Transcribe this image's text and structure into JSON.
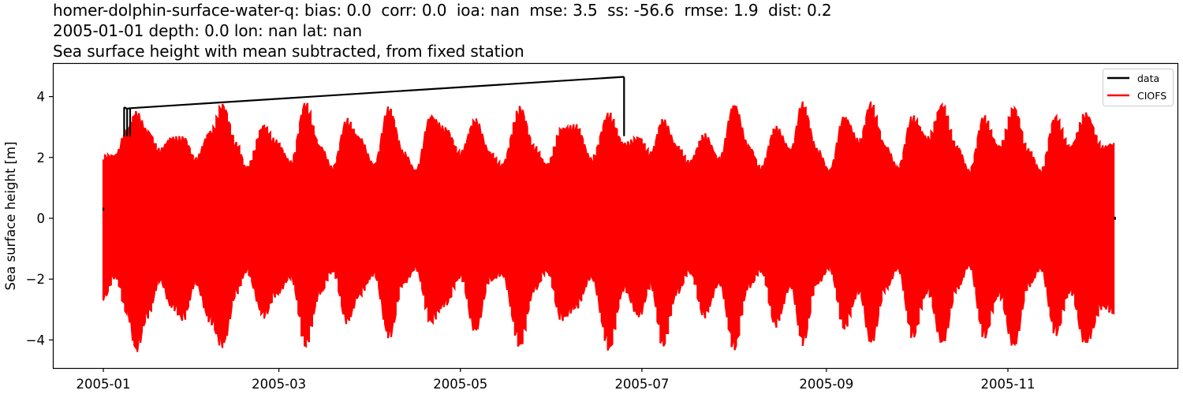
{
  "title": {
    "line1": "homer-dolphin-surface-water-q: bias: 0.0  corr: 0.0  ioa: nan  mse: 3.5  ss: -56.6  rmse: 1.9  dist: 0.2",
    "line2": "2005-01-01 depth: 0.0 lon: nan lat: nan",
    "line3": "Sea surface height with mean subtracted, from fixed station"
  },
  "axes": {
    "ylabel": "Sea surface height [m]",
    "yticks": [
      {
        "value": 4,
        "label": "4"
      },
      {
        "value": 2,
        "label": "2"
      },
      {
        "value": 0,
        "label": "0"
      },
      {
        "value": -2,
        "label": "−2"
      },
      {
        "value": -4,
        "label": "−4"
      }
    ],
    "xticks": [
      {
        "day": 0,
        "label": "2005-01"
      },
      {
        "day": 59,
        "label": "2005-03"
      },
      {
        "day": 120,
        "label": "2005-05"
      },
      {
        "day": 181,
        "label": "2005-07"
      },
      {
        "day": 243,
        "label": "2005-09"
      },
      {
        "day": 304,
        "label": "2005-11"
      }
    ]
  },
  "legend": {
    "items": [
      {
        "label": "data",
        "color": "#000000"
      },
      {
        "label": "CIOFS",
        "color": "#ff0000"
      }
    ]
  },
  "colors": {
    "data": "#000000",
    "model": "#ff0000",
    "axis": "#000000",
    "legend_border": "#cccccc"
  },
  "chart_data": {
    "type": "line",
    "title": "homer-dolphin-surface-water-q: bias: 0.0  corr: 0.0  ioa: nan  mse: 3.5  ss: -56.6  rmse: 1.9  dist: 0.2 | 2005-01-01 depth: 0.0 lon: nan lat: nan | Sea surface height with mean subtracted, from fixed station",
    "xlabel": "",
    "ylabel": "Sea surface height [m]",
    "xlim": [
      "2004-12-03",
      "2005-12-31"
    ],
    "ylim": [
      -4.9,
      5.1
    ],
    "x_range": [
      "2005-01-01",
      "2005-12-07"
    ],
    "legend_position": "upper right",
    "grid": false,
    "series": [
      {
        "name": "data",
        "color": "#000000",
        "note": "Observed series is mostly flat near 0 and hidden under CIOFS except for spikes",
        "points": [
          {
            "date": "2005-01-01",
            "value": 0.3
          },
          {
            "date": "2005-01-08",
            "value": 3.65
          },
          {
            "date": "2005-01-09",
            "value": 3.6
          },
          {
            "date": "2005-01-10",
            "value": 3.62
          },
          {
            "date": "2005-06-25",
            "value": 4.65
          },
          {
            "date": "2005-12-07",
            "value": 0.0
          }
        ]
      },
      {
        "name": "CIOFS",
        "color": "#ff0000",
        "note": "Semi-diurnal tidal signal; envelope given as daily max/min at spring-neap control points (day of year from 2005-01-01)",
        "envelope": [
          {
            "day": 0,
            "max": 2.1,
            "min": -2.7
          },
          {
            "day": 4,
            "max": 2.1,
            "min": -2.0
          },
          {
            "day": 8,
            "max": 3.0,
            "min": -3.2
          },
          {
            "day": 11,
            "max": 3.55,
            "min": -4.45
          },
          {
            "day": 15,
            "max": 2.9,
            "min": -3.3
          },
          {
            "day": 19,
            "max": 2.3,
            "min": -2.1
          },
          {
            "day": 23,
            "max": 2.7,
            "min": -3.0
          },
          {
            "day": 27,
            "max": 2.7,
            "min": -3.4
          },
          {
            "day": 31,
            "max": 2.0,
            "min": -2.2
          },
          {
            "day": 36,
            "max": 2.9,
            "min": -3.5
          },
          {
            "day": 40,
            "max": 3.8,
            "min": -4.3
          },
          {
            "day": 45,
            "max": 2.5,
            "min": -2.5
          },
          {
            "day": 48,
            "max": 1.7,
            "min": -1.8
          },
          {
            "day": 54,
            "max": 3.1,
            "min": -3.3
          },
          {
            "day": 58,
            "max": 2.6,
            "min": -2.6
          },
          {
            "day": 63,
            "max": 1.9,
            "min": -2.0
          },
          {
            "day": 68,
            "max": 3.85,
            "min": -4.3
          },
          {
            "day": 73,
            "max": 2.4,
            "min": -2.5
          },
          {
            "day": 77,
            "max": 1.7,
            "min": -1.8
          },
          {
            "day": 82,
            "max": 3.3,
            "min": -3.5
          },
          {
            "day": 86,
            "max": 2.7,
            "min": -2.6
          },
          {
            "day": 91,
            "max": 1.8,
            "min": -1.9
          },
          {
            "day": 96,
            "max": 3.7,
            "min": -4.0
          },
          {
            "day": 101,
            "max": 2.2,
            "min": -2.2
          },
          {
            "day": 105,
            "max": 1.6,
            "min": -1.7
          },
          {
            "day": 110,
            "max": 3.4,
            "min": -3.5
          },
          {
            "day": 115,
            "max": 3.0,
            "min": -2.9
          },
          {
            "day": 120,
            "max": 2.2,
            "min": -2.0
          },
          {
            "day": 125,
            "max": 3.3,
            "min": -3.8
          },
          {
            "day": 130,
            "max": 2.2,
            "min": -2.1
          },
          {
            "day": 134,
            "max": 1.8,
            "min": -1.9
          },
          {
            "day": 140,
            "max": 3.7,
            "min": -4.3
          },
          {
            "day": 145,
            "max": 2.4,
            "min": -2.4
          },
          {
            "day": 149,
            "max": 1.8,
            "min": -1.8
          },
          {
            "day": 154,
            "max": 3.0,
            "min": -3.4
          },
          {
            "day": 159,
            "max": 3.1,
            "min": -3.0
          },
          {
            "day": 164,
            "max": 2.0,
            "min": -2.0
          },
          {
            "day": 170,
            "max": 3.5,
            "min": -4.4
          },
          {
            "day": 175,
            "max": 2.5,
            "min": -2.4
          },
          {
            "day": 180,
            "max": 2.7,
            "min": -3.3
          },
          {
            "day": 184,
            "max": 2.2,
            "min": -2.3
          },
          {
            "day": 188,
            "max": 3.3,
            "min": -4.3
          },
          {
            "day": 193,
            "max": 2.4,
            "min": -2.5
          },
          {
            "day": 197,
            "max": 1.9,
            "min": -1.8
          },
          {
            "day": 202,
            "max": 2.8,
            "min": -3.3
          },
          {
            "day": 207,
            "max": 2.0,
            "min": -2.2
          },
          {
            "day": 212,
            "max": 3.8,
            "min": -4.4
          },
          {
            "day": 217,
            "max": 2.4,
            "min": -2.3
          },
          {
            "day": 221,
            "max": 1.7,
            "min": -1.8
          },
          {
            "day": 226,
            "max": 3.05,
            "min": -3.6
          },
          {
            "day": 231,
            "max": 2.3,
            "min": -2.3
          },
          {
            "day": 235,
            "max": 3.85,
            "min": -4.2
          },
          {
            "day": 240,
            "max": 2.3,
            "min": -2.2
          },
          {
            "day": 244,
            "max": 1.6,
            "min": -1.7
          },
          {
            "day": 249,
            "max": 3.4,
            "min": -3.7
          },
          {
            "day": 254,
            "max": 2.6,
            "min": -2.5
          },
          {
            "day": 258,
            "max": 3.85,
            "min": -4.2
          },
          {
            "day": 263,
            "max": 2.4,
            "min": -2.4
          },
          {
            "day": 267,
            "max": 1.7,
            "min": -1.7
          },
          {
            "day": 272,
            "max": 3.4,
            "min": -4.0
          },
          {
            "day": 277,
            "max": 2.7,
            "min": -2.5
          },
          {
            "day": 282,
            "max": 3.8,
            "min": -4.2
          },
          {
            "day": 287,
            "max": 2.4,
            "min": -2.4
          },
          {
            "day": 291,
            "max": 1.6,
            "min": -1.6
          },
          {
            "day": 296,
            "max": 3.4,
            "min": -4.0
          },
          {
            "day": 301,
            "max": 2.4,
            "min": -2.6
          },
          {
            "day": 306,
            "max": 3.7,
            "min": -4.3
          },
          {
            "day": 311,
            "max": 2.3,
            "min": -2.3
          },
          {
            "day": 315,
            "max": 1.6,
            "min": -1.7
          },
          {
            "day": 320,
            "max": 3.4,
            "min": -3.9
          },
          {
            "day": 325,
            "max": 2.4,
            "min": -2.5
          },
          {
            "day": 330,
            "max": 3.5,
            "min": -4.2
          },
          {
            "day": 336,
            "max": 2.4,
            "min": -3.0
          },
          {
            "day": 340,
            "max": 2.5,
            "min": -3.2
          }
        ]
      }
    ]
  }
}
